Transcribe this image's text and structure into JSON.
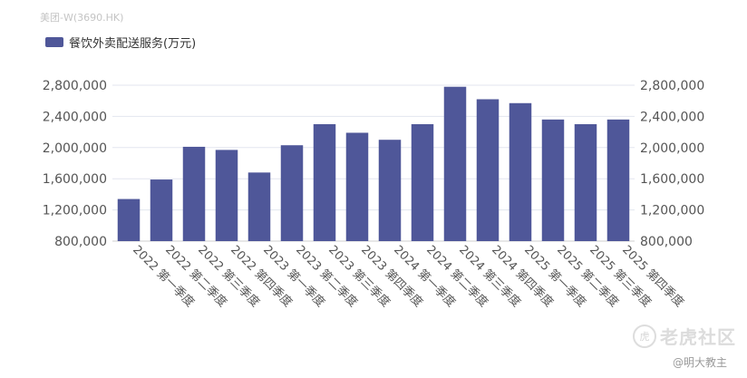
{
  "header": {
    "ticker": "美团-W(3690.HK)"
  },
  "legend": {
    "label": "餐饮外卖配送服务(万元)",
    "color": "#4f5799"
  },
  "watermark": {
    "text": "老虎社区",
    "icon": "tiger-logo-icon",
    "author": "@明大教主"
  },
  "chart_data": {
    "type": "bar",
    "categories": [
      "2022 第一季度",
      "2022 第二季度",
      "2022 第三季度",
      "2022 第四季度",
      "2023 第一季度",
      "2023 第二季度",
      "2023 第三季度",
      "2023 第四季度",
      "2024 第一季度",
      "2024 第二季度",
      "2024 第三季度",
      "2024 第四季度",
      "2025 第一季度",
      "2025 第二季度",
      "2025 第三季度",
      "2025 第四季度"
    ],
    "series": [
      {
        "name": "餐饮外卖配送服务(万元)",
        "values": [
          1340000,
          1590000,
          2010000,
          1970000,
          1680000,
          2030000,
          2300000,
          2190000,
          2100000,
          2300000,
          2780000,
          2620000,
          2570000,
          2360000,
          2300000,
          2360000
        ]
      }
    ],
    "yticks": [
      "800,000",
      "1,200,000",
      "1,600,000",
      "2,000,000",
      "2,400,000",
      "2,800,000"
    ],
    "ylim": [
      800000,
      2800000
    ],
    "grid": true,
    "color": "#4f5799"
  }
}
